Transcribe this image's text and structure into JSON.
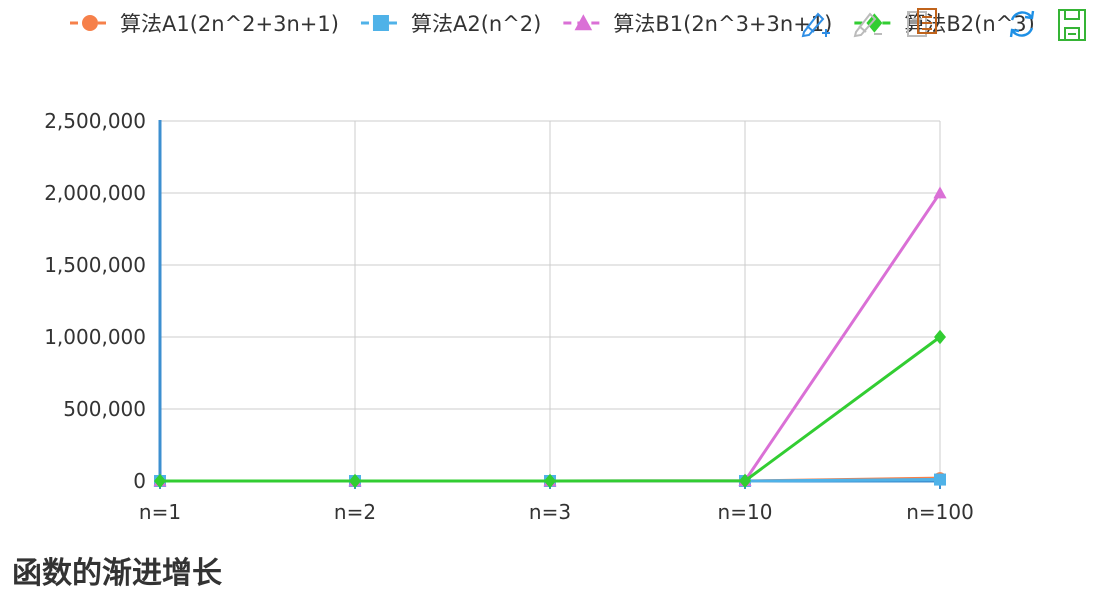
{
  "page": {
    "title": "函数的渐进增长"
  },
  "toolbox": {
    "icons": [
      "data-zoom-icon",
      "data-zoom-reset-icon",
      "data-view-icon",
      "restore-icon",
      "save-as-image-icon"
    ],
    "colors": {
      "zoom": "#2f8ee5",
      "zoom_reset": "#bbbbbb",
      "data_view": "#bbbbbb",
      "data_view_accent": "#c0631b",
      "restore": "#1e90e6",
      "save": "#35b435"
    }
  },
  "chart_data": {
    "type": "line",
    "title": "",
    "xlabel": "",
    "ylabel": "",
    "categories": [
      "n=1",
      "n=2",
      "n=3",
      "n=10",
      "n=100"
    ],
    "ylim": [
      0,
      2500000
    ],
    "y_ticks": [
      0,
      500000,
      1000000,
      1500000,
      2000000,
      2500000
    ],
    "y_tick_labels": [
      "0",
      "500,000",
      "1,000,000",
      "1,500,000",
      "2,000,000",
      "2,500,000"
    ],
    "grid": true,
    "legend_position": "top",
    "series": [
      {
        "name": "算法A1(2n^2+3n+1)",
        "values": [
          6,
          15,
          28,
          231,
          20301
        ],
        "color": "#f6804a",
        "marker": "circle"
      },
      {
        "name": "算法A2(n^2)",
        "values": [
          1,
          4,
          9,
          100,
          10000
        ],
        "color": "#4fb2e8",
        "marker": "square"
      },
      {
        "name": "算法B1(2n^3+3n+1)",
        "values": [
          6,
          23,
          64,
          2031,
          2000301
        ],
        "color": "#da70d6",
        "marker": "triangle"
      },
      {
        "name": "算法B2(n^3)",
        "values": [
          1,
          8,
          27,
          1000,
          1000000
        ],
        "color": "#32cd32",
        "marker": "diamond"
      }
    ]
  }
}
